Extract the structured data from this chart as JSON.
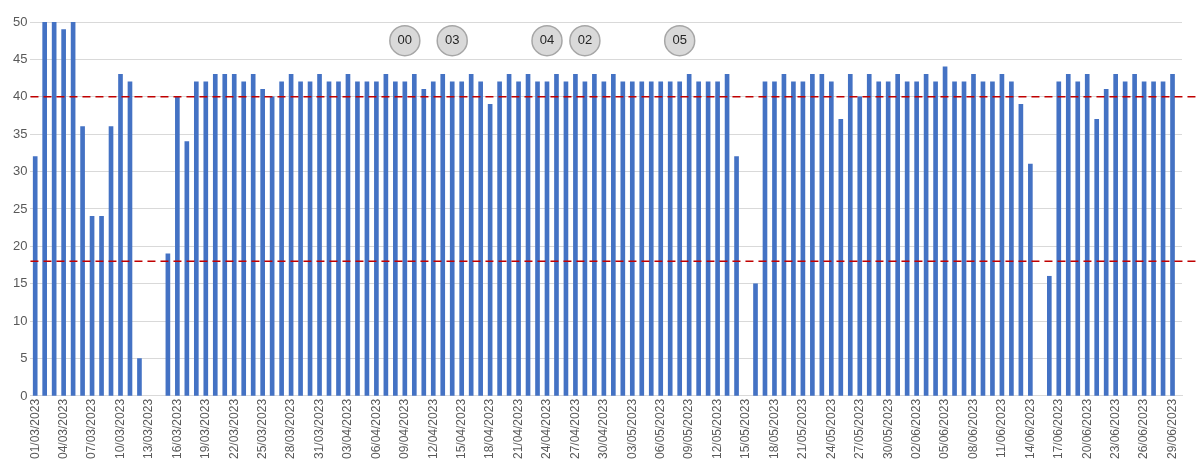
{
  "chart_data": {
    "type": "bar",
    "color": "#4472c4",
    "x": [
      "2023-03-01",
      "2023-03-02",
      "2023-03-03",
      "2023-03-04",
      "2023-03-05",
      "2023-03-06",
      "2023-03-07",
      "2023-03-08",
      "2023-03-09",
      "2023-03-10",
      "2023-03-11",
      "2023-03-12",
      "2023-03-13",
      "2023-03-14",
      "2023-03-15",
      "2023-03-16",
      "2023-03-17",
      "2023-03-18",
      "2023-03-19",
      "2023-03-20",
      "2023-03-21",
      "2023-03-22",
      "2023-03-23",
      "2023-03-24",
      "2023-03-25",
      "2023-03-26",
      "2023-03-27",
      "2023-03-28",
      "2023-03-29",
      "2023-03-30",
      "2023-03-31",
      "2023-04-01",
      "2023-04-02",
      "2023-04-03",
      "2023-04-04",
      "2023-04-05",
      "2023-04-06",
      "2023-04-07",
      "2023-04-08",
      "2023-04-09",
      "2023-04-10",
      "2023-04-11",
      "2023-04-12",
      "2023-04-13",
      "2023-04-14",
      "2023-04-15",
      "2023-04-16",
      "2023-04-17",
      "2023-04-18",
      "2023-04-19",
      "2023-04-20",
      "2023-04-21",
      "2023-04-22",
      "2023-04-23",
      "2023-04-24",
      "2023-04-25",
      "2023-04-26",
      "2023-04-27",
      "2023-04-28",
      "2023-04-29",
      "2023-04-30",
      "2023-05-01",
      "2023-05-02",
      "2023-05-03",
      "2023-05-04",
      "2023-05-05",
      "2023-05-06",
      "2023-05-07",
      "2023-05-08",
      "2023-05-09",
      "2023-05-10",
      "2023-05-11",
      "2023-05-12",
      "2023-05-13",
      "2023-05-14",
      "2023-05-15",
      "2023-05-16",
      "2023-05-17",
      "2023-05-18",
      "2023-05-19",
      "2023-05-20",
      "2023-05-21",
      "2023-05-22",
      "2023-05-23",
      "2023-05-24",
      "2023-05-25",
      "2023-05-26",
      "2023-05-27",
      "2023-05-28",
      "2023-05-29",
      "2023-05-30",
      "2023-05-31",
      "2023-06-01",
      "2023-06-02",
      "2023-06-03",
      "2023-06-04",
      "2023-06-05",
      "2023-06-06",
      "2023-06-07",
      "2023-06-08",
      "2023-06-09",
      "2023-06-10",
      "2023-06-11",
      "2023-06-12",
      "2023-06-13",
      "2023-06-14",
      "2023-06-15",
      "2023-06-16",
      "2023-06-17",
      "2023-06-18",
      "2023-06-19",
      "2023-06-20",
      "2023-06-21",
      "2023-06-22",
      "2023-06-23",
      "2023-06-24",
      "2023-06-25",
      "2023-06-26",
      "2023-06-27",
      "2023-06-28",
      "2023-06-29"
    ],
    "values": [
      32,
      50,
      50,
      49,
      50,
      36,
      24,
      24,
      36,
      43,
      42,
      5,
      null,
      null,
      19,
      40,
      34,
      42,
      42,
      43,
      43,
      43,
      42,
      43,
      41,
      40,
      42,
      43,
      42,
      42,
      43,
      42,
      42,
      43,
      42,
      42,
      42,
      43,
      42,
      42,
      43,
      41,
      42,
      43,
      42,
      42,
      43,
      42,
      39,
      42,
      43,
      42,
      43,
      42,
      42,
      43,
      42,
      43,
      42,
      43,
      42,
      43,
      42,
      42,
      42,
      42,
      42,
      42,
      42,
      43,
      42,
      42,
      42,
      43,
      32,
      null,
      15,
      42,
      42,
      43,
      42,
      42,
      43,
      43,
      42,
      37,
      43,
      40,
      43,
      42,
      42,
      43,
      42,
      42,
      43,
      42,
      44,
      42,
      42,
      43,
      42,
      42,
      43,
      42,
      39,
      31,
      null,
      16,
      42,
      43,
      42,
      43,
      37,
      41,
      43,
      42,
      43,
      42,
      42,
      42,
      43
    ],
    "xlim": [
      "2023-02-28T12:00",
      "2023-06-30"
    ],
    "xticks": [
      {
        "value": "2023-03-01",
        "label": "01/03/2023"
      },
      {
        "value": "2023-03-04",
        "label": "04/03/2023"
      },
      {
        "value": "2023-03-07",
        "label": "07/03/2023"
      },
      {
        "value": "2023-03-10",
        "label": "10/03/2023"
      },
      {
        "value": "2023-03-13",
        "label": "13/03/2023"
      },
      {
        "value": "2023-03-16",
        "label": "16/03/2023"
      },
      {
        "value": "2023-03-19",
        "label": "19/03/2023"
      },
      {
        "value": "2023-03-22",
        "label": "22/03/2023"
      },
      {
        "value": "2023-03-25",
        "label": "25/03/2023"
      },
      {
        "value": "2023-03-28",
        "label": "28/03/2023"
      },
      {
        "value": "2023-03-31",
        "label": "31/03/2023"
      },
      {
        "value": "2023-04-03",
        "label": "03/04/2023"
      },
      {
        "value": "2023-04-06",
        "label": "06/04/2023"
      },
      {
        "value": "2023-04-09",
        "label": "09/04/2023"
      },
      {
        "value": "2023-04-12",
        "label": "12/04/2023"
      },
      {
        "value": "2023-04-15",
        "label": "15/04/2023"
      },
      {
        "value": "2023-04-18",
        "label": "18/04/2023"
      },
      {
        "value": "2023-04-21",
        "label": "21/04/2023"
      },
      {
        "value": "2023-04-24",
        "label": "24/04/2023"
      },
      {
        "value": "2023-04-27",
        "label": "27/04/2023"
      },
      {
        "value": "2023-04-30",
        "label": "30/04/2023"
      },
      {
        "value": "2023-05-03",
        "label": "03/05/2023"
      },
      {
        "value": "2023-05-06",
        "label": "06/05/2023"
      },
      {
        "value": "2023-05-09",
        "label": "09/05/2023"
      },
      {
        "value": "2023-05-12",
        "label": "12/05/2023"
      },
      {
        "value": "2023-05-15",
        "label": "15/05/2023"
      },
      {
        "value": "2023-05-18",
        "label": "18/05/2023"
      },
      {
        "value": "2023-05-21",
        "label": "21/05/2023"
      },
      {
        "value": "2023-05-24",
        "label": "24/05/2023"
      },
      {
        "value": "2023-05-27",
        "label": "27/05/2023"
      },
      {
        "value": "2023-05-30",
        "label": "30/05/2023"
      },
      {
        "value": "2023-06-02",
        "label": "02/06/2023"
      },
      {
        "value": "2023-06-05",
        "label": "05/06/2023"
      },
      {
        "value": "2023-06-08",
        "label": "08/06/2023"
      },
      {
        "value": "2023-06-11",
        "label": "11/06/2023"
      },
      {
        "value": "2023-06-14",
        "label": "14/06/2023"
      },
      {
        "value": "2023-06-17",
        "label": "17/06/2023"
      },
      {
        "value": "2023-06-20",
        "label": "20/06/2023"
      },
      {
        "value": "2023-06-23",
        "label": "23/06/2023"
      },
      {
        "value": "2023-06-26",
        "label": "26/06/2023"
      },
      {
        "value": "2023-06-29",
        "label": "29/06/2023"
      }
    ],
    "ylim": [
      0,
      50
    ],
    "yticks": [
      0,
      5,
      10,
      15,
      20,
      25,
      30,
      35,
      40,
      45,
      50
    ],
    "grid": "y",
    "ref_lines": [
      {
        "axis": "y",
        "value": 40,
        "color": "#c00000",
        "line_style": "dashed"
      },
      {
        "axis": "y",
        "value": 18,
        "color": "#c00000",
        "line_style": "dashed"
      }
    ],
    "annotations": [
      {
        "text": "00",
        "x": "2023-04-09",
        "y": 47.5
      },
      {
        "text": "03",
        "x": "2023-04-14",
        "y": 47.5
      },
      {
        "text": "04",
        "x": "2023-04-24",
        "y": 47.5
      },
      {
        "text": "02",
        "x": "2023-04-28",
        "y": 47.5
      },
      {
        "text": "05",
        "x": "2023-05-08",
        "y": 47.5
      }
    ]
  }
}
